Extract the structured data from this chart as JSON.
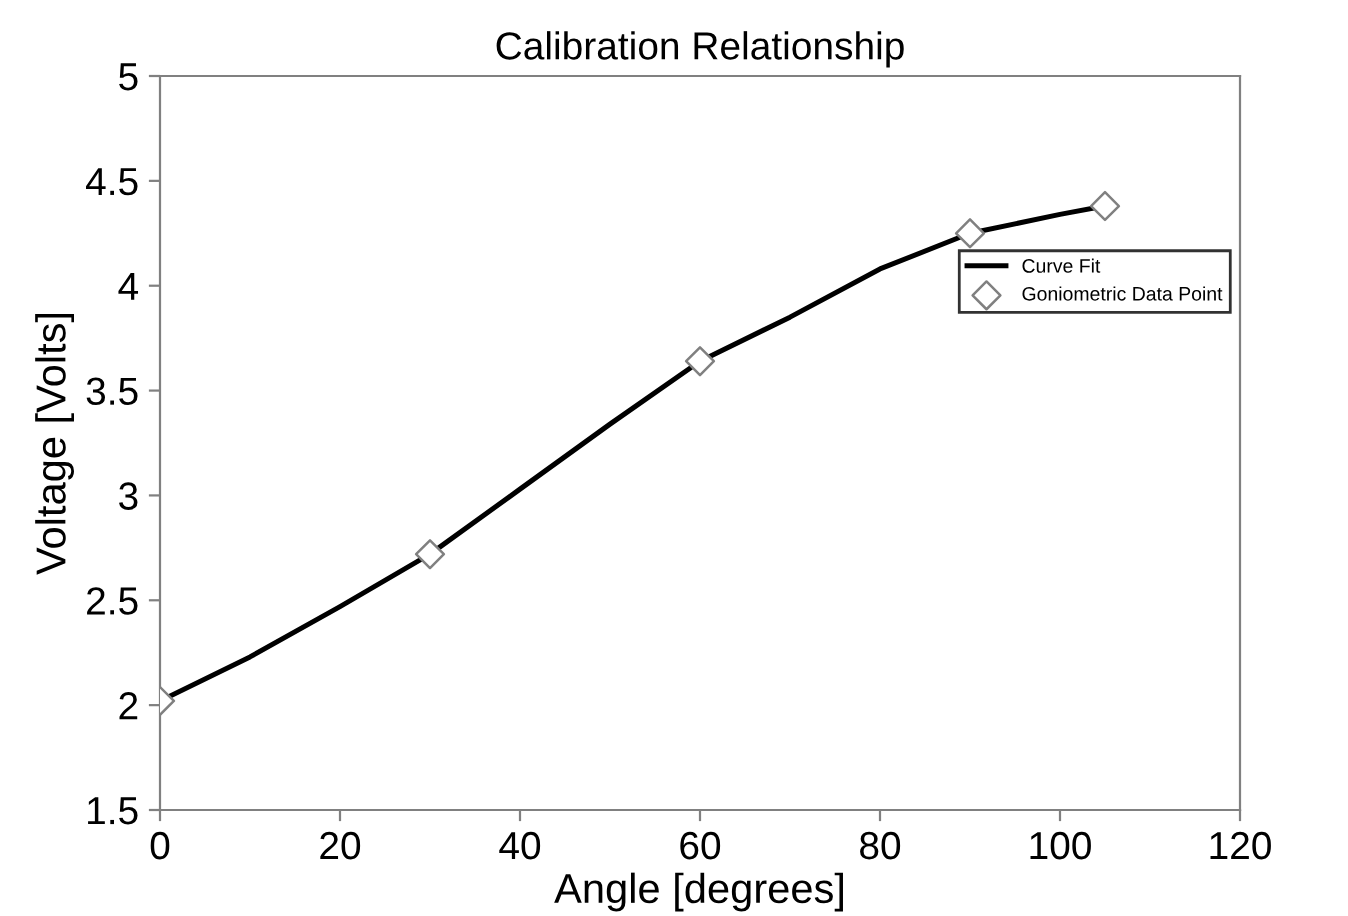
{
  "chart_data": {
    "type": "line",
    "title": "Calibration Relationship",
    "xlabel": "Angle [degrees]",
    "ylabel": "Voltage [Volts]",
    "xlim": [
      0,
      120
    ],
    "xticks": [
      0,
      20,
      40,
      60,
      80,
      100,
      120
    ],
    "ylim": [
      1.5,
      5
    ],
    "yticks": [
      1.5,
      2,
      2.5,
      3,
      3.5,
      4,
      4.5,
      5
    ],
    "grid": false,
    "legend": "right",
    "series": [
      {
        "name": "Curve Fit",
        "color": "#000000",
        "marker": "none",
        "line_style": "solid",
        "x": [
          0,
          10,
          20,
          30,
          40,
          50,
          60,
          70,
          80,
          90,
          100,
          105
        ],
        "values": [
          2.02,
          2.23,
          2.47,
          2.72,
          3.03,
          3.34,
          3.64,
          3.85,
          4.08,
          4.25,
          4.34,
          4.38
        ]
      },
      {
        "name": "Goniometric Data Point",
        "type": "scatter",
        "color": "#808080",
        "marker": "diamond",
        "x": [
          0,
          30,
          60,
          90,
          105
        ],
        "values": [
          2.02,
          2.72,
          3.64,
          4.25,
          4.38
        ]
      }
    ]
  }
}
